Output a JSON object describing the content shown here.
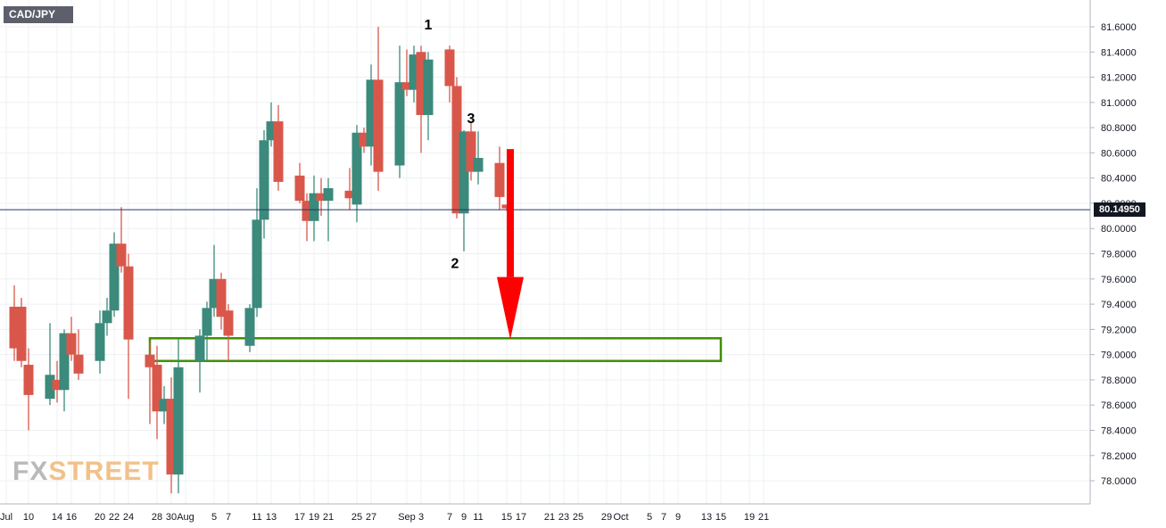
{
  "symbol": "CAD/JPY",
  "watermark": {
    "part1": "FX",
    "part2": "STREET"
  },
  "current_price_label": "80.14950",
  "colors": {
    "up": "#3b8a7b",
    "down": "#d9574a",
    "arrow": "#ff0000",
    "zone": "#3f8f00",
    "price_line": "#2a3560"
  },
  "chart_data": {
    "type": "candlestick",
    "title": "",
    "xlabel": "",
    "ylabel": "",
    "ylim": [
      77.9,
      81.75
    ],
    "y_ticks": [
      "81.6000",
      "81.4000",
      "81.2000",
      "81.0000",
      "80.8000",
      "80.6000",
      "80.4000",
      "80.2000",
      "80.0000",
      "79.8000",
      "79.6000",
      "79.4000",
      "79.2000",
      "79.0000",
      "78.8000",
      "78.6000",
      "78.4000",
      "78.2000",
      "78.0000"
    ],
    "x_ticks": [
      "Jul",
      "10",
      "14",
      "16",
      "20",
      "22",
      "24",
      "28",
      "30",
      "Aug",
      "5",
      "7",
      "11",
      "13",
      "17",
      "19",
      "21",
      "25",
      "27",
      "Sep",
      "3",
      "7",
      "9",
      "11",
      "15",
      "17",
      "21",
      "23",
      "25",
      "29",
      "Oct",
      "5",
      "7",
      "9",
      "13",
      "15",
      "19",
      "21"
    ],
    "candles": [
      {
        "date": "Jul 8",
        "open": 79.38,
        "high": 79.55,
        "low": 78.95,
        "close": 79.05
      },
      {
        "date": "Jul 9",
        "open": 79.38,
        "high": 79.45,
        "low": 78.9,
        "close": 78.95
      },
      {
        "date": "Jul 10",
        "open": 78.92,
        "high": 79.05,
        "low": 78.4,
        "close": 78.68
      },
      {
        "date": "Jul 13",
        "open": 78.65,
        "high": 79.25,
        "low": 78.6,
        "close": 78.84
      },
      {
        "date": "Jul 14",
        "open": 78.8,
        "high": 78.95,
        "low": 78.62,
        "close": 78.72
      },
      {
        "date": "Jul 15",
        "open": 78.72,
        "high": 79.2,
        "low": 78.55,
        "close": 79.17
      },
      {
        "date": "Jul 16",
        "open": 79.17,
        "high": 79.3,
        "low": 78.95,
        "close": 79.0
      },
      {
        "date": "Jul 17",
        "open": 79.0,
        "high": 79.2,
        "low": 78.8,
        "close": 78.85
      },
      {
        "date": "Jul 20",
        "open": 78.95,
        "high": 79.35,
        "low": 78.85,
        "close": 79.25
      },
      {
        "date": "Jul 21",
        "open": 79.25,
        "high": 79.45,
        "low": 79.15,
        "close": 79.35
      },
      {
        "date": "Jul 22",
        "open": 79.35,
        "high": 79.97,
        "low": 79.3,
        "close": 79.88
      },
      {
        "date": "Jul 23",
        "open": 79.88,
        "high": 80.17,
        "low": 79.65,
        "close": 79.7
      },
      {
        "date": "Jul 24",
        "open": 79.7,
        "high": 79.8,
        "low": 78.65,
        "close": 79.12
      },
      {
        "date": "Jul 27",
        "open": 79.0,
        "high": 79.1,
        "low": 78.45,
        "close": 78.9
      },
      {
        "date": "Jul 28",
        "open": 78.92,
        "high": 79.07,
        "low": 78.33,
        "close": 78.55
      },
      {
        "date": "Jul 29",
        "open": 78.55,
        "high": 78.75,
        "low": 78.45,
        "close": 78.65
      },
      {
        "date": "Jul 30",
        "open": 78.65,
        "high": 78.82,
        "low": 77.9,
        "close": 78.05
      },
      {
        "date": "Jul 31",
        "open": 78.05,
        "high": 79.12,
        "low": 77.9,
        "close": 78.9
      },
      {
        "date": "Aug 3",
        "open": 78.95,
        "high": 79.2,
        "low": 78.7,
        "close": 79.15
      },
      {
        "date": "Aug 4",
        "open": 79.15,
        "high": 79.42,
        "low": 78.95,
        "close": 79.37
      },
      {
        "date": "Aug 5",
        "open": 79.37,
        "high": 79.87,
        "low": 79.3,
        "close": 79.6
      },
      {
        "date": "Aug 6",
        "open": 79.6,
        "high": 79.65,
        "low": 79.2,
        "close": 79.3
      },
      {
        "date": "Aug 7",
        "open": 79.35,
        "high": 79.4,
        "low": 78.95,
        "close": 79.15
      },
      {
        "date": "Aug 10",
        "open": 79.07,
        "high": 79.4,
        "low": 79.02,
        "close": 79.37
      },
      {
        "date": "Aug 11",
        "open": 79.37,
        "high": 80.32,
        "low": 79.3,
        "close": 80.07
      },
      {
        "date": "Aug 12",
        "open": 80.07,
        "high": 80.78,
        "low": 79.92,
        "close": 80.7
      },
      {
        "date": "Aug 13",
        "open": 80.7,
        "high": 81.0,
        "low": 80.65,
        "close": 80.85
      },
      {
        "date": "Aug 14",
        "open": 80.85,
        "high": 80.98,
        "low": 80.3,
        "close": 80.37
      },
      {
        "date": "Aug 17",
        "open": 80.42,
        "high": 80.52,
        "low": 80.2,
        "close": 80.22
      },
      {
        "date": "Aug 18",
        "open": 80.22,
        "high": 80.28,
        "low": 79.9,
        "close": 80.06
      },
      {
        "date": "Aug 19",
        "open": 80.06,
        "high": 80.42,
        "low": 79.9,
        "close": 80.28
      },
      {
        "date": "Aug 20",
        "open": 80.28,
        "high": 80.4,
        "low": 80.1,
        "close": 80.22
      },
      {
        "date": "Aug 21",
        "open": 80.22,
        "high": 80.4,
        "low": 79.9,
        "close": 80.32
      },
      {
        "date": "Aug 24",
        "open": 80.3,
        "high": 80.48,
        "low": 80.15,
        "close": 80.24
      },
      {
        "date": "Aug 25",
        "open": 80.19,
        "high": 80.82,
        "low": 80.05,
        "close": 80.76
      },
      {
        "date": "Aug 26",
        "open": 80.76,
        "high": 80.8,
        "low": 80.6,
        "close": 80.65
      },
      {
        "date": "Aug 27",
        "open": 80.65,
        "high": 81.3,
        "low": 80.5,
        "close": 81.18
      },
      {
        "date": "Aug 28",
        "open": 81.18,
        "high": 81.6,
        "low": 80.3,
        "close": 80.45
      },
      {
        "date": "Aug 31",
        "open": 80.5,
        "high": 81.45,
        "low": 80.4,
        "close": 81.16
      },
      {
        "date": "Sep 1",
        "open": 81.16,
        "high": 81.42,
        "low": 81.05,
        "close": 81.1
      },
      {
        "date": "Sep 2",
        "open": 81.1,
        "high": 81.45,
        "low": 81.0,
        "close": 81.38
      },
      {
        "date": "Sep 3",
        "open": 81.4,
        "high": 81.45,
        "low": 80.6,
        "close": 80.9
      },
      {
        "date": "Sep 4",
        "open": 80.9,
        "high": 81.4,
        "low": 80.7,
        "close": 81.34
      },
      {
        "date": "Sep 7",
        "open": 81.42,
        "high": 81.45,
        "low": 81.0,
        "close": 81.13
      },
      {
        "date": "Sep 8",
        "open": 81.13,
        "high": 81.2,
        "low": 80.08,
        "close": 80.12
      },
      {
        "date": "Sep 9",
        "open": 80.12,
        "high": 80.78,
        "low": 79.82,
        "close": 80.77
      },
      {
        "date": "Sep 10",
        "open": 80.77,
        "high": 80.85,
        "low": 80.38,
        "close": 80.45
      },
      {
        "date": "Sep 11",
        "open": 80.45,
        "high": 80.77,
        "low": 80.35,
        "close": 80.56
      },
      {
        "date": "Sep 14",
        "open": 80.52,
        "high": 80.65,
        "low": 80.15,
        "close": 80.25
      },
      {
        "date": "Sep 15",
        "open": 80.19,
        "high": 80.19,
        "low": 80.14,
        "close": 80.16
      }
    ],
    "current_price": 80.1495,
    "annotations": [
      {
        "text": "1",
        "near": "Sep 4 high"
      },
      {
        "text": "3",
        "near": "Sep 10 high"
      },
      {
        "text": "2",
        "near": "Sep 9 low"
      }
    ],
    "support_zone": {
      "from_date": "Jul 27",
      "to_date": "Oct 15",
      "low": 78.95,
      "high": 79.13
    },
    "arrow": {
      "at_date": "Sep 17",
      "from_price": 80.63,
      "to_price": 79.12,
      "direction": "down"
    }
  }
}
